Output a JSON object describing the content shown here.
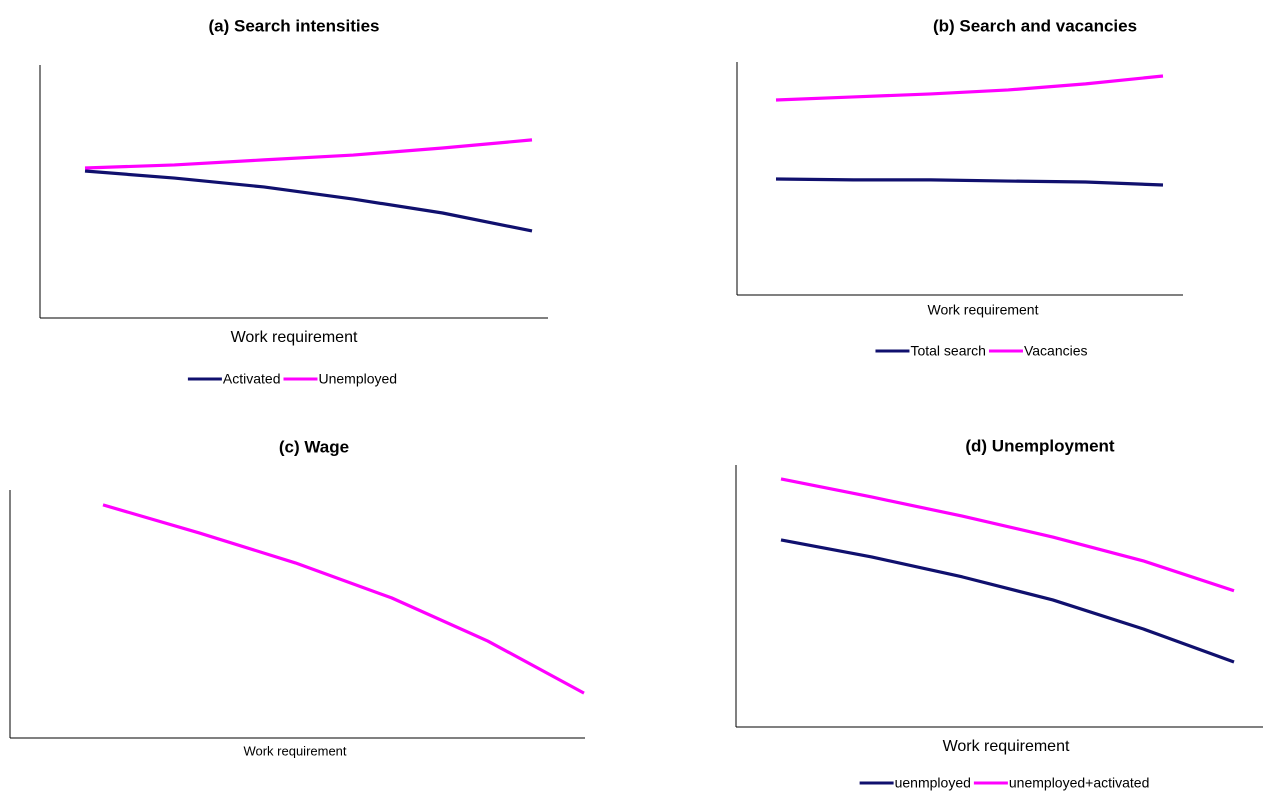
{
  "chart_data": [
    {
      "type": "line",
      "title": "(a) Search intensities",
      "x_label": "Work requirement",
      "categories": [
        null,
        null,
        null,
        null,
        null,
        null
      ],
      "ylim": [
        0,
        100
      ],
      "series": [
        {
          "name": "Activated",
          "color": "#10106e",
          "values": [
            58.1,
            55.3,
            51.8,
            47.0,
            41.5,
            34.4
          ]
        },
        {
          "name": "Unemployed",
          "color": "#ff00ff",
          "values": [
            59.3,
            60.5,
            62.5,
            64.4,
            67.2,
            70.4
          ]
        }
      ]
    },
    {
      "type": "line",
      "title": "(b) Search and vacancies",
      "x_label": "Work requirement",
      "categories": [
        null,
        null,
        null,
        null,
        null,
        null
      ],
      "ylim": [
        0,
        100
      ],
      "series": [
        {
          "name": "Total search",
          "color": "#10106e",
          "values": [
            49.8,
            49.4,
            49.4,
            48.9,
            48.5,
            47.2
          ]
        },
        {
          "name": "Vacancies",
          "color": "#ff00ff",
          "values": [
            83.7,
            85.0,
            86.3,
            88.0,
            90.6,
            94.0
          ]
        }
      ]
    },
    {
      "type": "line",
      "title": "(c) Wage",
      "x_label": "Work requirement",
      "categories": [
        null,
        null,
        null,
        null,
        null,
        null
      ],
      "ylim": [
        0,
        100
      ],
      "series": [
        {
          "color": "#ff00ff",
          "values": [
            94.0,
            82.7,
            70.6,
            56.5,
            39.1,
            18.1
          ]
        }
      ]
    },
    {
      "type": "line",
      "title": "(d) Unemployment",
      "x_label": "Work requirement",
      "categories": [
        null,
        null,
        null,
        null,
        null,
        null
      ],
      "ylim": [
        0,
        100
      ],
      "series": [
        {
          "name": "uenmployed",
          "color": "#10106e",
          "values": [
            71.4,
            64.9,
            57.3,
            48.5,
            37.4,
            24.8
          ]
        },
        {
          "name": "unemployed+activated",
          "color": "#ff00ff",
          "values": [
            94.7,
            87.8,
            80.5,
            72.5,
            63.4,
            52.0
          ]
        }
      ]
    }
  ]
}
